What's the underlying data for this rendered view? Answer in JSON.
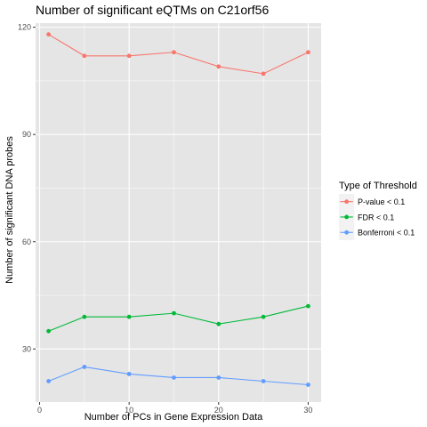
{
  "chart_data": {
    "type": "line",
    "title": "Number of significant eQTMs on C21orf56",
    "xlabel": "Number of PCs in Gene Expression Data",
    "ylabel": "Number of significant DNA probes",
    "x": [
      1,
      5,
      10,
      15,
      20,
      25,
      30
    ],
    "xlim": [
      -0.45,
      31.45
    ],
    "ylim": [
      15.15,
      121.15
    ],
    "xticks": [
      0,
      10,
      20,
      30
    ],
    "xtick_labels": [
      "0",
      "10",
      "20",
      "30"
    ],
    "yticks": [
      30,
      60,
      90,
      120
    ],
    "ytick_labels": [
      "30",
      "60",
      "90",
      "120"
    ],
    "grid": true,
    "legend": {
      "title": "Type of Threshold",
      "placement": "right"
    },
    "series": [
      {
        "name": "P-value < 0.1",
        "color": "#F8766D",
        "values": [
          118,
          112,
          112,
          113,
          109,
          107,
          113
        ]
      },
      {
        "name": "FDR < 0.1",
        "color": "#00BA38",
        "values": [
          35,
          39,
          39,
          40,
          37,
          39,
          42
        ]
      },
      {
        "name": "Bonferroni < 0.1",
        "color": "#619CFF",
        "values": [
          21,
          25,
          23,
          22,
          22,
          21,
          20
        ]
      }
    ],
    "panel_background": "#E5E5E5",
    "grid_color": "#FFFFFF"
  }
}
